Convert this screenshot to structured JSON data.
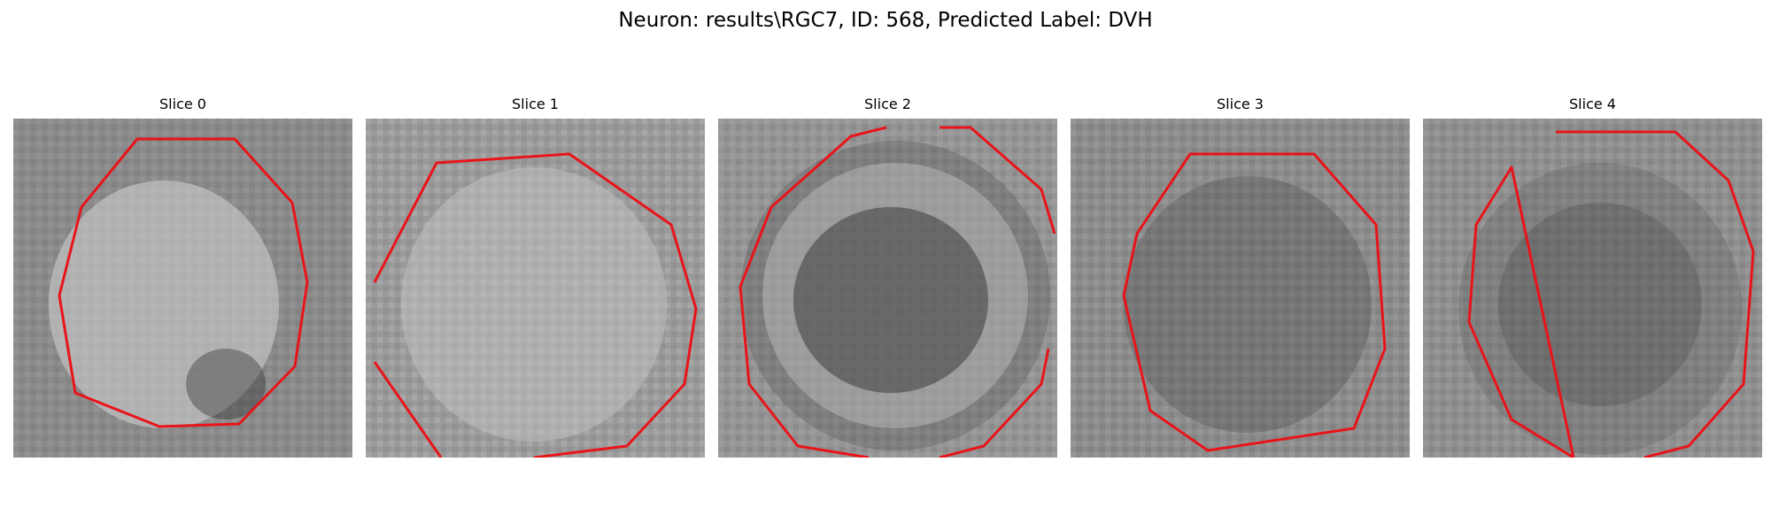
{
  "figure": {
    "title": "Neuron: results\\RGC7, ID: 568, Predicted Label: DVH"
  },
  "panels": [
    {
      "title": "Slice 0",
      "contour_color": "#e8141a",
      "image": "grayscale noisy micrograph patch; bright textured cell body centered, dark shadow lower right",
      "appearance": "bright"
    },
    {
      "title": "Slice 1",
      "contour_color": "#e8141a",
      "image": "grayscale noisy micrograph patch; bright speckled interior, large contour exceeding patch at lower-left and bottom",
      "appearance": "bright"
    },
    {
      "title": "Slice 2",
      "contour_color": "#e8141a",
      "image": "grayscale micrograph patch; dark center with bright ring and dark outer halo",
      "appearance": "ring"
    },
    {
      "title": "Slice 3",
      "contour_color": "#e8141a",
      "image": "grayscale noisy micrograph patch; darker speckled center, no clear membrane",
      "appearance": "dark"
    },
    {
      "title": "Slice 4",
      "contour_color": "#e8141a",
      "image": "grayscale micrograph patch; mottled dark center with faint bright ring",
      "appearance": "ring"
    }
  ]
}
